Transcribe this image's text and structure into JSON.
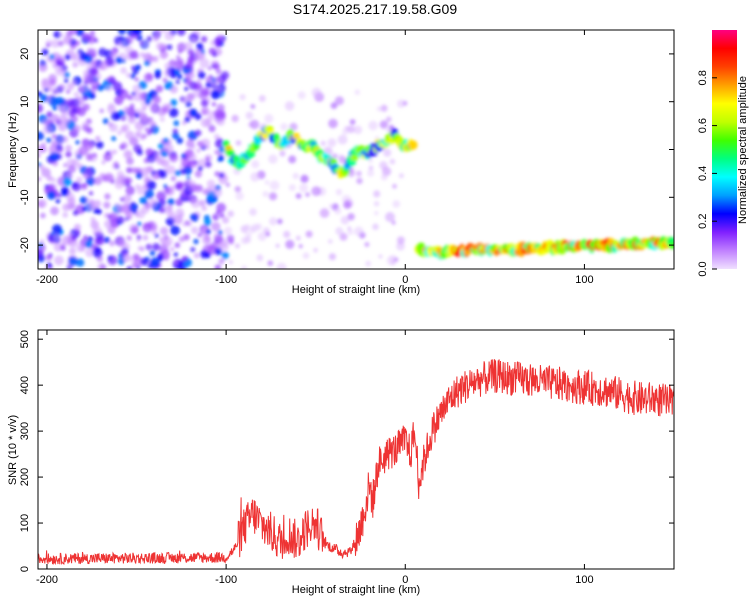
{
  "figure": {
    "title": "S174.2025.217.19.58.G09"
  },
  "chart_data": [
    {
      "type": "heatmap",
      "panel": "top",
      "title": "S174.2025.217.19.58.G09",
      "xlabel": "Height of straight line (km)",
      "ylabel": "Frequency (Hz)",
      "xlim": [
        -205,
        150
      ],
      "ylim": [
        -25,
        25
      ],
      "xticks": [
        -200,
        -100,
        0,
        100
      ],
      "yticks": [
        -20,
        -10,
        0,
        10,
        20
      ],
      "grid": false,
      "colorbar": {
        "label": "Normalized spectral amplitude",
        "range": [
          0,
          1
        ],
        "ticks": [
          0.0,
          0.2,
          0.4,
          0.6,
          0.8
        ],
        "colormap": [
          "#f0e0ff",
          "#c080ff",
          "#8020ff",
          "#0000ff",
          "#00a0ff",
          "#00ffff",
          "#00ff80",
          "#40ff00",
          "#c0ff00",
          "#ffff00",
          "#ffa000",
          "#ff4000",
          "#ff0000",
          "#ff0080"
        ]
      },
      "features": [
        {
          "name": "noise",
          "x_range": [
            -205,
            -100
          ],
          "y_range": [
            -25,
            25
          ],
          "amplitude": [
            0.05,
            0.3
          ]
        },
        {
          "name": "scattered",
          "x_range": [
            -100,
            0
          ],
          "y_range": [
            -25,
            12
          ],
          "amplitude": [
            0.02,
            0.12
          ]
        },
        {
          "name": "upper-track",
          "points": [
            [
              -100,
              1
            ],
            [
              -97,
              -2
            ],
            [
              -92,
              -3
            ],
            [
              -88,
              -1
            ],
            [
              -84,
              1
            ],
            [
              -80,
              3
            ],
            [
              -76,
              4
            ],
            [
              -72,
              2
            ],
            [
              -68,
              1
            ],
            [
              -64,
              3
            ],
            [
              -60,
              2
            ],
            [
              -56,
              0
            ],
            [
              -52,
              1
            ],
            [
              -48,
              -1
            ],
            [
              -44,
              -2
            ],
            [
              -40,
              -3
            ],
            [
              -36,
              -5
            ],
            [
              -33,
              -4
            ],
            [
              -30,
              -2
            ],
            [
              -26,
              0
            ],
            [
              -22,
              -1
            ],
            [
              -18,
              0
            ],
            [
              -14,
              1
            ],
            [
              -10,
              2
            ],
            [
              -6,
              3
            ],
            [
              -2,
              1
            ],
            [
              2,
              1
            ],
            [
              5,
              1
            ]
          ],
          "amplitude": [
            0.2,
            0.75
          ]
        },
        {
          "name": "lower-track",
          "points": [
            [
              8,
              -21
            ],
            [
              20,
              -21.5
            ],
            [
              40,
              -21
            ],
            [
              60,
              -21
            ],
            [
              80,
              -20.5
            ],
            [
              100,
              -20
            ],
            [
              120,
              -20
            ],
            [
              140,
              -19.5
            ],
            [
              150,
              -19.5
            ]
          ],
          "amplitude": [
            0.4,
            0.95
          ]
        }
      ]
    },
    {
      "type": "line",
      "panel": "bottom",
      "xlabel": "Height of straight line (km)",
      "ylabel": "SNR (10 * v/v)",
      "xlim": [
        -205,
        150
      ],
      "ylim": [
        0,
        520
      ],
      "xticks": [
        -200,
        -100,
        0,
        100
      ],
      "yticks": [
        0,
        100,
        200,
        300,
        400,
        500
      ],
      "grid": false,
      "color": "#ee3333",
      "series": [
        {
          "x": [
            -205,
            -100,
            -95,
            -90,
            -85,
            -80,
            -75,
            -70,
            -65,
            -60,
            -55,
            -50,
            -45,
            -40,
            -35,
            -30,
            -25,
            -20,
            -18,
            -15,
            -12,
            -10,
            -5,
            0,
            3,
            5,
            8,
            10,
            15,
            20,
            25,
            30,
            35,
            40,
            50,
            60,
            70,
            80,
            90,
            100,
            110,
            120,
            130,
            140,
            150
          ],
          "y": [
            22,
            25,
            45,
            90,
            120,
            95,
            80,
            60,
            75,
            60,
            90,
            100,
            55,
            45,
            35,
            40,
            90,
            180,
            150,
            230,
            240,
            250,
            260,
            280,
            250,
            300,
            190,
            230,
            300,
            340,
            370,
            390,
            400,
            410,
            420,
            415,
            410,
            405,
            400,
            395,
            390,
            380,
            370,
            370,
            360
          ]
        }
      ]
    }
  ]
}
